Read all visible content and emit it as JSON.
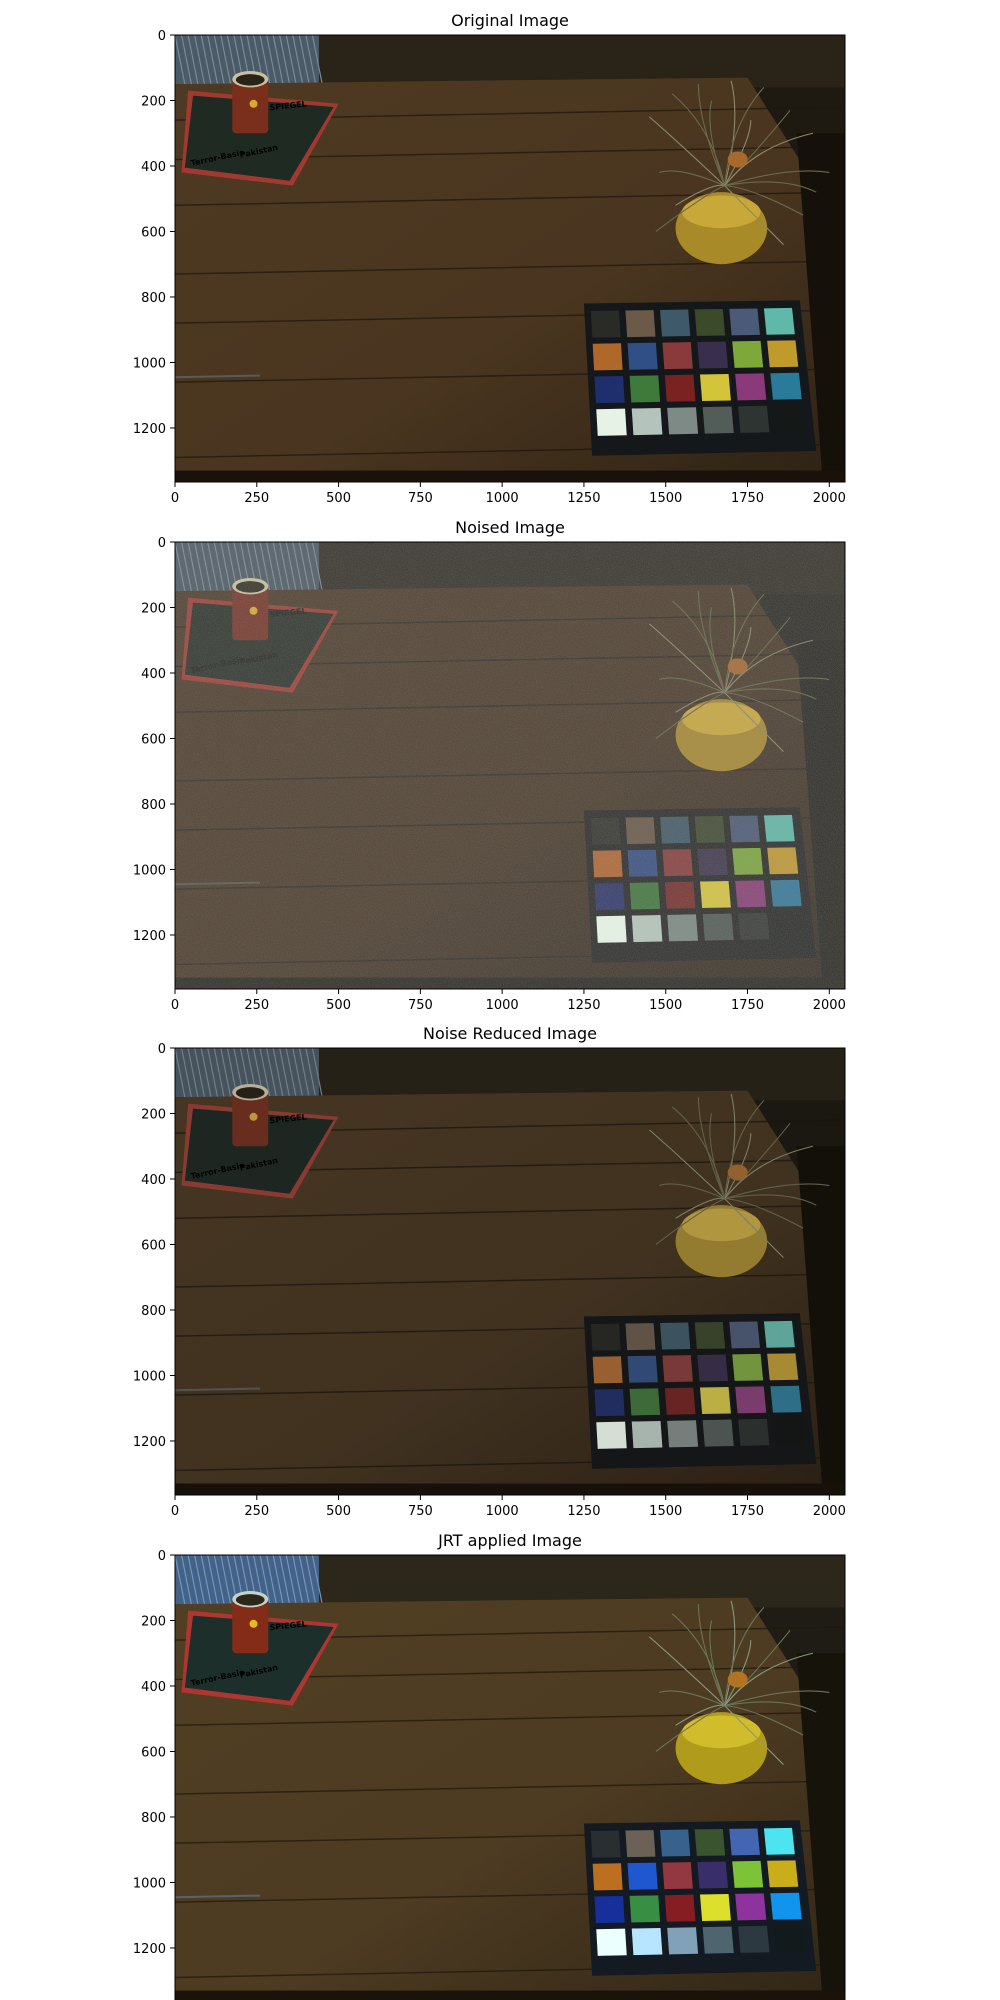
{
  "figure": {
    "panels": [
      {
        "title": "Original Image",
        "variant": "original"
      },
      {
        "title": "Noised Image",
        "variant": "noised"
      },
      {
        "title": "Noise Reduced Image",
        "variant": "reduced"
      },
      {
        "title": "JRT applied Image",
        "variant": "jrt"
      }
    ]
  },
  "chart_data": [
    {
      "type": "image",
      "title": "Original Image",
      "xlim": [
        0,
        2048
      ],
      "ylim": [
        1365,
        0
      ],
      "xticks": [
        0,
        250,
        500,
        750,
        1000,
        1250,
        1500,
        1750,
        2000
      ],
      "yticks": [
        0,
        200,
        400,
        600,
        800,
        1000,
        1200
      ],
      "grid": false,
      "xlabel": "",
      "ylabel": ""
    },
    {
      "type": "image",
      "title": "Noised Image",
      "xlim": [
        0,
        2048
      ],
      "ylim": [
        1365,
        0
      ],
      "xticks": [
        0,
        250,
        500,
        750,
        1000,
        1250,
        1500,
        1750,
        2000
      ],
      "yticks": [
        0,
        200,
        400,
        600,
        800,
        1000,
        1200
      ],
      "grid": false,
      "xlabel": "",
      "ylabel": ""
    },
    {
      "type": "image",
      "title": "Noise Reduced Image",
      "xlim": [
        0,
        2048
      ],
      "ylim": [
        1365,
        0
      ],
      "xticks": [
        0,
        250,
        500,
        750,
        1000,
        1250,
        1500,
        1750,
        2000
      ],
      "yticks": [
        0,
        200,
        400,
        600,
        800,
        1000,
        1200
      ],
      "grid": false,
      "xlabel": "",
      "ylabel": ""
    },
    {
      "type": "image",
      "title": "JRT applied Image",
      "xlim": [
        0,
        2048
      ],
      "ylim": [
        1365,
        0
      ],
      "xticks": [
        0,
        250,
        500,
        750,
        1000,
        1250,
        1500,
        1750,
        2000
      ],
      "yticks": [
        0,
        200,
        400,
        600,
        800,
        1000,
        1200
      ],
      "grid": false,
      "xlabel": "",
      "ylabel": ""
    }
  ],
  "scene": {
    "magazine_text": [
      "SPIEGEL",
      "Terror-Basis",
      "Pakistan"
    ],
    "checker_colors": [
      [
        "#2a2a26",
        "#6b5a48",
        "#3e5a6a",
        "#3b4a2a",
        "#4a5a78",
        "#5fb8a8"
      ],
      [
        "#b0682a",
        "#2f4f86",
        "#8a3a3a",
        "#3a2e4e",
        "#7ea83a",
        "#c09a2a"
      ],
      [
        "#1f2f6e",
        "#3e7a3a",
        "#7a2222",
        "#d4c43a",
        "#8a3a78",
        "#2a7a9a"
      ],
      [
        "#e6f2e6",
        "#b4c4bc",
        "#7e8a86",
        "#525c58",
        "#2e3432",
        "#141816"
      ]
    ],
    "table_color": "#4a3620"
  }
}
